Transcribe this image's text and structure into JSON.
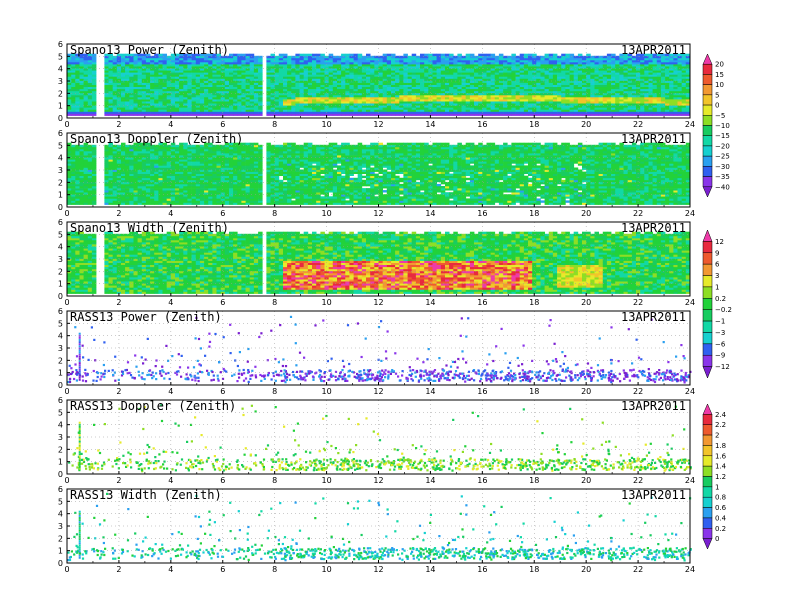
{
  "figure": {
    "date_label": "13APR2011"
  },
  "colors": {
    "scale": [
      "#7a1fd0",
      "#8a35ea",
      "#3060f0",
      "#2aa0f0",
      "#16d0d0",
      "#12d8a6",
      "#18cc60",
      "#22d23a",
      "#8ede24",
      "#e6ea2a",
      "#f2c42a",
      "#f29832",
      "#ee5a2e",
      "#e82a3e",
      "#ee3aa8"
    ],
    "gridline": "#9a9a9a"
  },
  "colorbars": [
    {
      "name": "snr",
      "ticks": [
        "20",
        "15",
        "10",
        "5",
        "0",
        "−5",
        "−10",
        "−15",
        "−20",
        "−25",
        "−30",
        "−35",
        "−40"
      ]
    },
    {
      "name": "width",
      "ticks": [
        "12",
        "9",
        "6",
        "3",
        "1",
        "0.2",
        "−0.2",
        "−1",
        "−3",
        "−6",
        "−9",
        "−12"
      ]
    },
    {
      "name": "rass",
      "ticks": [
        "2.4",
        "2.2",
        "2",
        "1.8",
        "1.6",
        "1.4",
        "1.2",
        "1",
        "0.8",
        "0.6",
        "0.4",
        "0.2",
        "0"
      ]
    }
  ],
  "chart_data": [
    {
      "type": "heatmap",
      "title": "Spano13 Power (Zenith)",
      "date": "13APR2011",
      "xlim": [
        0,
        24
      ],
      "ylim": [
        0,
        6
      ],
      "xticks": [
        "0",
        "2",
        "4",
        "6",
        "8",
        "10",
        "12",
        "14",
        "16",
        "18",
        "20",
        "22",
        "24"
      ],
      "yticks": [
        "0",
        "1",
        "2",
        "3",
        "4",
        "5",
        "6"
      ],
      "grid": true,
      "data_top_km": 5.2,
      "data_gaps_hours": [
        [
          1.0,
          1.4
        ],
        [
          7.45,
          7.55
        ]
      ]
    },
    {
      "type": "heatmap",
      "title": "Spano13 Doppler (Zenith)",
      "date": "13APR2011",
      "xlim": [
        0,
        24
      ],
      "ylim": [
        0,
        6
      ],
      "xticks": [
        "0",
        "2",
        "4",
        "6",
        "8",
        "10",
        "12",
        "14",
        "16",
        "18",
        "20",
        "22",
        "24"
      ],
      "yticks": [
        "0",
        "1",
        "2",
        "3",
        "4",
        "5",
        "6"
      ],
      "grid": true,
      "data_top_km": 5.2,
      "data_gaps_hours": [
        [
          1.0,
          1.4
        ],
        [
          7.45,
          7.55
        ]
      ]
    },
    {
      "type": "heatmap",
      "title": "Spano13 Width (Zenith)",
      "date": "13APR2011",
      "xlim": [
        0,
        24
      ],
      "ylim": [
        0,
        6
      ],
      "xticks": [
        "0",
        "2",
        "4",
        "6",
        "8",
        "10",
        "12",
        "14",
        "16",
        "18",
        "20",
        "22",
        "24"
      ],
      "yticks": [
        "0",
        "1",
        "2",
        "3",
        "4",
        "5",
        "6"
      ],
      "grid": true,
      "data_top_km": 5.2,
      "data_gaps_hours": [
        [
          1.0,
          1.4
        ],
        [
          7.45,
          7.55
        ]
      ]
    },
    {
      "type": "scatter",
      "title": "RASS13 Power (Zenith)",
      "date": "13APR2011",
      "xlim": [
        0,
        24
      ],
      "ylim": [
        0,
        6
      ],
      "xticks": [
        "0",
        "2",
        "4",
        "6",
        "8",
        "10",
        "12",
        "14",
        "16",
        "18",
        "20",
        "22",
        "24"
      ],
      "yticks": [
        "0",
        "1",
        "2",
        "3",
        "4",
        "5",
        "6"
      ],
      "grid": true,
      "core_band_km": [
        0.4,
        1.3
      ]
    },
    {
      "type": "scatter",
      "title": "RASS13 Doppler (Zenith)",
      "date": "13APR2011",
      "xlim": [
        0,
        24
      ],
      "ylim": [
        0,
        6
      ],
      "xticks": [
        "0",
        "2",
        "4",
        "6",
        "8",
        "10",
        "12",
        "14",
        "16",
        "18",
        "20",
        "22",
        "24"
      ],
      "yticks": [
        "0",
        "1",
        "2",
        "3",
        "4",
        "5",
        "6"
      ],
      "grid": true,
      "core_band_km": [
        0.4,
        1.3
      ]
    },
    {
      "type": "scatter",
      "title": "RASS13 Width (Zenith)",
      "date": "13APR2011",
      "xlim": [
        0,
        24
      ],
      "ylim": [
        0,
        6
      ],
      "xticks": [
        "0",
        "2",
        "4",
        "6",
        "8",
        "10",
        "12",
        "14",
        "16",
        "18",
        "20",
        "22",
        "24"
      ],
      "yticks": [
        "0",
        "1",
        "2",
        "3",
        "4",
        "5",
        "6"
      ],
      "grid": true,
      "core_band_km": [
        0.4,
        1.3
      ]
    }
  ]
}
